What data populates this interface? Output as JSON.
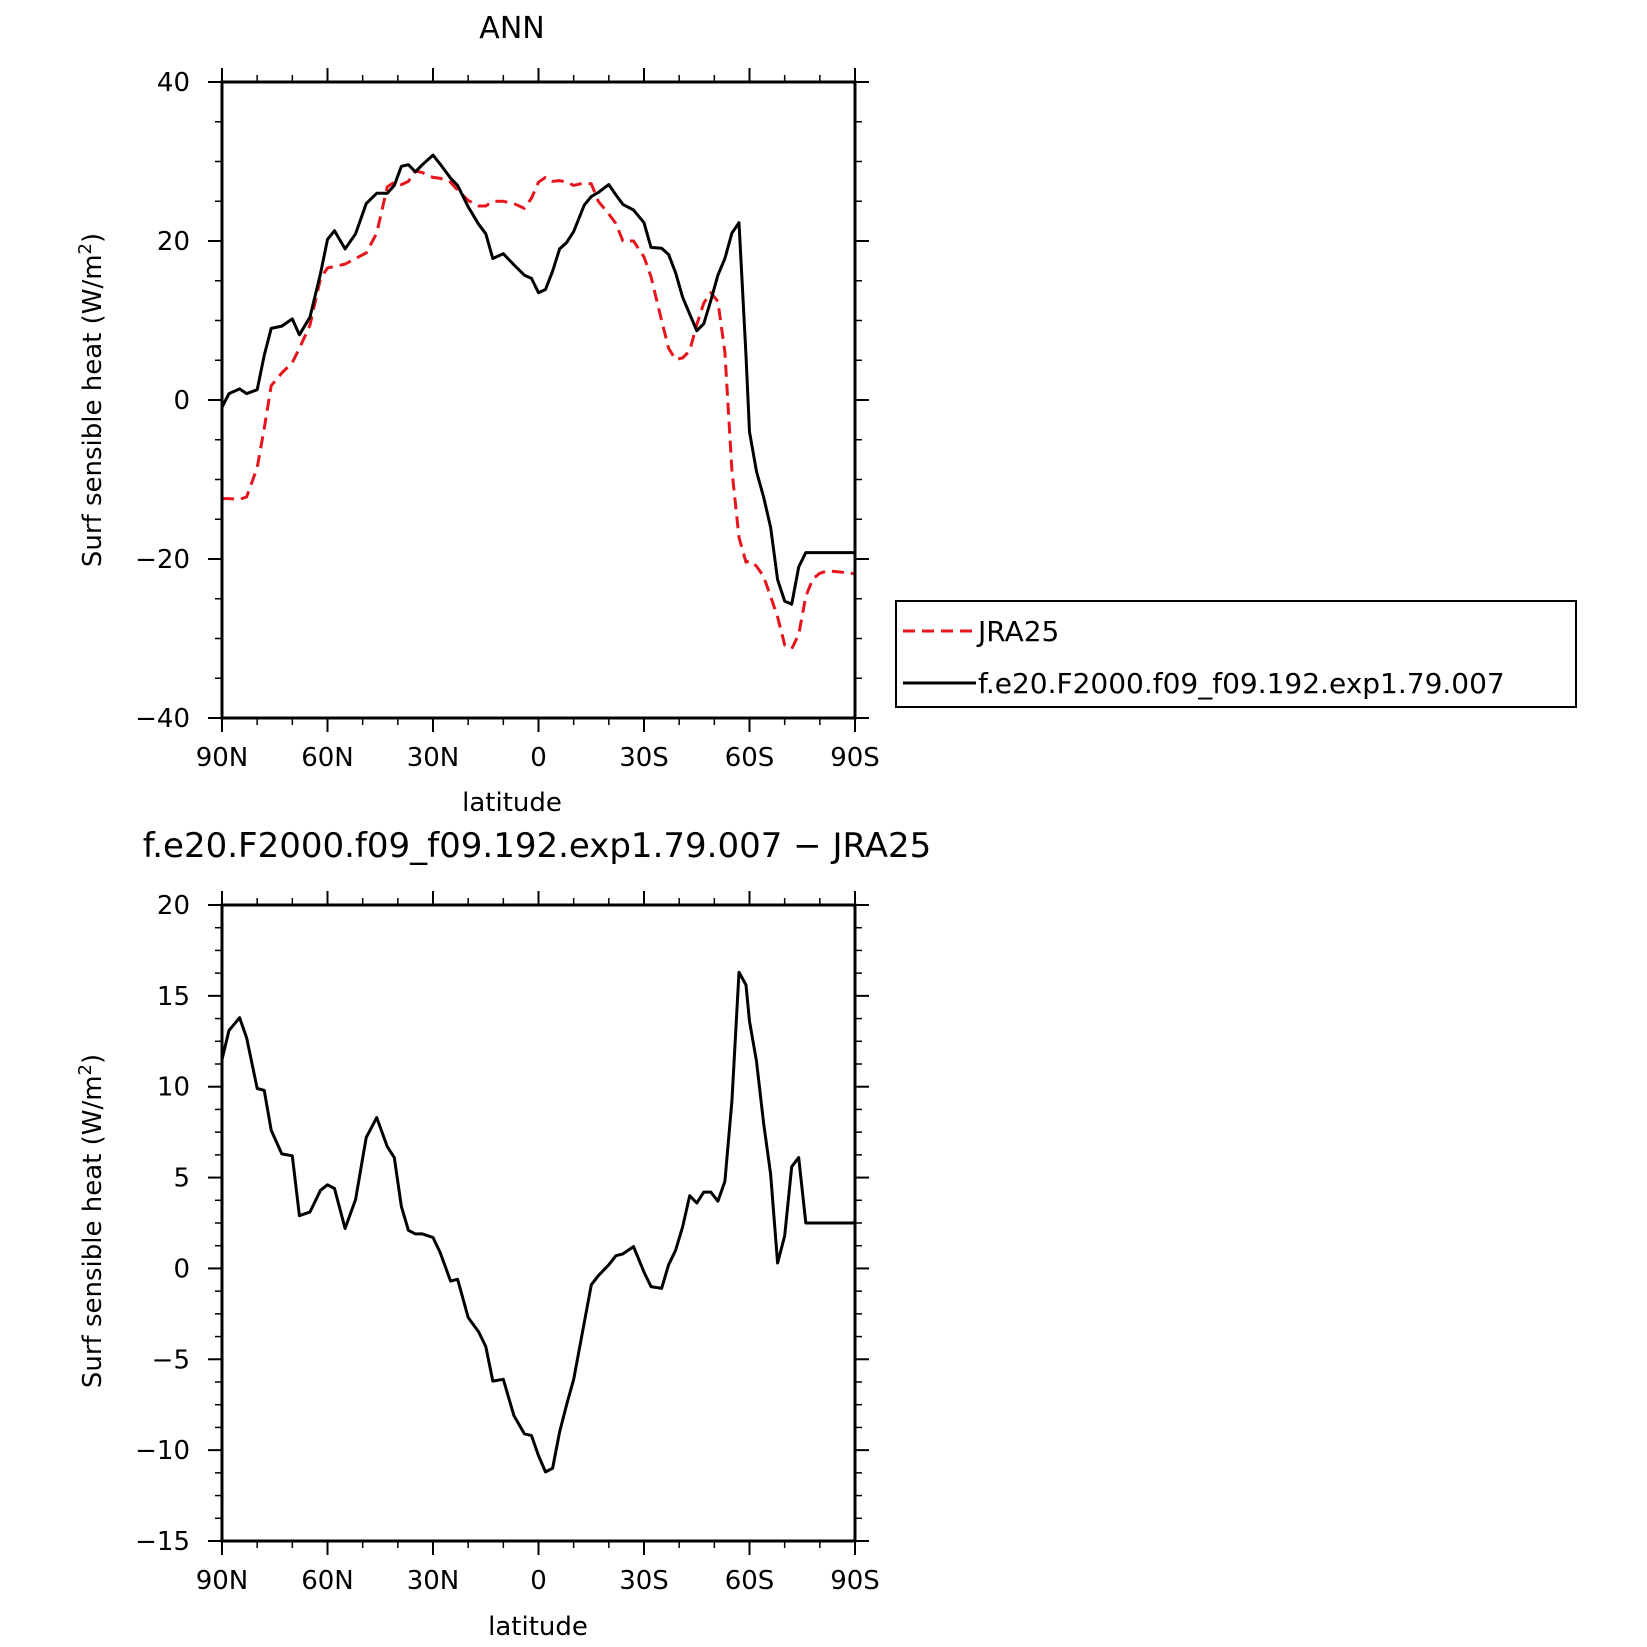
{
  "chart_data": [
    {
      "type": "line",
      "title": "ANN",
      "xlabel": "latitude",
      "ylabel": "Surf sensible heat (W/m²)",
      "xlim": [
        90,
        -90
      ],
      "ylim": [
        -40,
        40
      ],
      "xticks": [
        90,
        60,
        30,
        0,
        -30,
        -60,
        -90
      ],
      "xtick_labels": [
        "90N",
        "60N",
        "30N",
        "0",
        "30S",
        "60S",
        "90S"
      ],
      "yticks": [
        -40,
        -20,
        0,
        20,
        40
      ],
      "ytick_labels": [
        "−40",
        "−20",
        "0",
        "20",
        "40"
      ],
      "legend_position": "right",
      "series": [
        {
          "name": "JRA25",
          "color": "#e8141c",
          "dash": "dashed",
          "x": [
            90,
            88,
            85,
            83,
            80,
            78,
            76,
            73,
            70,
            68,
            65,
            62,
            60,
            58,
            55,
            52,
            49,
            46,
            43,
            41,
            39,
            37,
            35,
            33,
            30,
            28,
            25,
            23,
            20,
            17,
            15,
            13,
            10,
            7,
            4,
            2,
            0,
            -2,
            -4,
            -6,
            -8,
            -10,
            -13,
            -15,
            -17,
            -20,
            -22,
            -24,
            -27,
            -30,
            -32,
            -35,
            -37,
            -39,
            -41,
            -43,
            -45,
            -47,
            -49,
            -51,
            -53,
            -55,
            -57,
            -59,
            -60,
            -62,
            -64,
            -66,
            -68,
            -70,
            -72,
            -74,
            -76,
            -78,
            -80,
            -82,
            -85,
            -87,
            -89,
            -90
          ],
          "y": [
            -12.4,
            -12.4,
            -12.5,
            -12.2,
            -8.5,
            -3.6,
            1.8,
            3.4,
            4.7,
            6.5,
            9.4,
            15.3,
            16.6,
            16.8,
            17.1,
            17.8,
            18.5,
            21,
            26.8,
            27.4,
            27.1,
            27.5,
            28.8,
            28.6,
            28,
            27.9,
            27.4,
            26.4,
            25.1,
            24.4,
            24.4,
            25,
            25,
            24.7,
            24.1,
            25.4,
            27.4,
            28,
            27.5,
            27.6,
            27.4,
            27,
            27.3,
            27.2,
            25,
            23.4,
            22.2,
            20,
            20,
            18,
            15.5,
            10,
            6.5,
            5.1,
            5.3,
            6.2,
            9.5,
            12.2,
            13.5,
            12.4,
            6,
            -8.8,
            -17.3,
            -20.4,
            -20.2,
            -20.9,
            -22.2,
            -24.7,
            -27.3,
            -30.8,
            -31.3,
            -29.5,
            -24.7,
            -22.5,
            -21.8,
            -21.5,
            -21.6,
            -21.7,
            -21.8,
            -21.9
          ]
        },
        {
          "name": "f.e20.F2000.f09_f09.192.exp1.79.007",
          "color": "#000000",
          "dash": "solid",
          "x": [
            90,
            88,
            85,
            83,
            80,
            78,
            76,
            73,
            70,
            68,
            65,
            62,
            60,
            58,
            55,
            52,
            49,
            46,
            43,
            41,
            39,
            37,
            35,
            33,
            30,
            28,
            25,
            23,
            20,
            17,
            15,
            13,
            10,
            7,
            4,
            2,
            0,
            -2,
            -4,
            -6,
            -8,
            -10,
            -13,
            -15,
            -17,
            -20,
            -22,
            -24,
            -27,
            -30,
            -32,
            -35,
            -37,
            -39,
            -41,
            -43,
            -45,
            -47,
            -49,
            -51,
            -53,
            -55,
            -57,
            -59,
            -60,
            -62,
            -64,
            -66,
            -68,
            -70,
            -72,
            -74,
            -76,
            -78,
            -80,
            -82,
            -85,
            -87,
            -89,
            -90
          ],
          "y": [
            -0.9,
            0.8,
            1.4,
            0.8,
            1.3,
            5.6,
            9,
            9.3,
            10.2,
            8.2,
            10.4,
            15.9,
            20.2,
            21.3,
            19,
            20.9,
            24.7,
            26,
            26,
            27,
            29.4,
            29.6,
            28.7,
            29.6,
            30.8,
            29.7,
            27.9,
            27,
            24.3,
            22.1,
            20.9,
            17.8,
            18.4,
            17,
            15.7,
            15.3,
            13.5,
            13.9,
            16.2,
            19,
            19.8,
            21.2,
            24.5,
            25.6,
            26.1,
            27.1,
            25.8,
            24.6,
            23.9,
            22.3,
            19.2,
            19.1,
            18.3,
            16,
            12.9,
            10.8,
            8.7,
            9.6,
            12.5,
            15.7,
            17.8,
            21,
            22.3,
            5.6,
            -4,
            -9,
            -12.2,
            -16,
            -22.6,
            -25.3,
            -25.7,
            -21,
            -19.2,
            -19.2,
            -19.2,
            -19.2,
            -19.2,
            -19.2,
            -19.2,
            -19.2
          ]
        }
      ]
    },
    {
      "type": "line",
      "title": "f.e20.F2000.f09_f09.192.exp1.79.007 − JRA25",
      "xlabel": "latitude",
      "ylabel": "Surf sensible heat (W/m²)",
      "xlim": [
        90,
        -90
      ],
      "ylim": [
        -15,
        20
      ],
      "xticks": [
        90,
        60,
        30,
        0,
        -30,
        -60,
        -90
      ],
      "xtick_labels": [
        "90N",
        "60N",
        "30N",
        "0",
        "30S",
        "60S",
        "90S"
      ],
      "yticks": [
        -15,
        -10,
        -5,
        0,
        5,
        10,
        15,
        20
      ],
      "ytick_labels": [
        "−15",
        "−10",
        "−5",
        "0",
        "5",
        "10",
        "15",
        "20"
      ],
      "series": [
        {
          "color": "#000000",
          "dash": "solid",
          "x": [
            90,
            88,
            85,
            83,
            80,
            78,
            76,
            73,
            70,
            68,
            65,
            62,
            60,
            58,
            55,
            52,
            49,
            46,
            43,
            41,
            39,
            37,
            35,
            33,
            30,
            28,
            25,
            23,
            20,
            17,
            15,
            13,
            10,
            7,
            4,
            2,
            0,
            -2,
            -4,
            -6,
            -8,
            -10,
            -13,
            -15,
            -17,
            -20,
            -22,
            -24,
            -27,
            -30,
            -32,
            -35,
            -37,
            -39,
            -41,
            -43,
            -45,
            -47,
            -49,
            -51,
            -53,
            -55,
            -57,
            -59,
            -60,
            -62,
            -64,
            -66,
            -68,
            -70,
            -72,
            -74,
            -76,
            -78,
            -80,
            -82,
            -85,
            -87,
            -89,
            -90
          ],
          "y": [
            11.5,
            13.1,
            13.8,
            12.7,
            9.9,
            9.8,
            7.6,
            6.3,
            6.2,
            2.9,
            3.1,
            4.3,
            4.6,
            4.4,
            2.2,
            3.8,
            7.2,
            8.3,
            6.7,
            6.1,
            3.4,
            2.1,
            1.9,
            1.9,
            1.7,
            0.9,
            -0.7,
            -0.6,
            -2.7,
            -3.5,
            -4.3,
            -6.2,
            -6.1,
            -8.1,
            -9.1,
            -9.2,
            -10.3,
            -11.2,
            -11,
            -9,
            -7.5,
            -6.1,
            -3,
            -0.9,
            -0.4,
            0.2,
            0.7,
            0.8,
            1.2,
            -0.2,
            -1,
            -1.1,
            0.2,
            1,
            2.3,
            4,
            3.6,
            4.2,
            4.2,
            3.7,
            4.8,
            9.2,
            16.3,
            15.6,
            13.6,
            11.4,
            8,
            5.2,
            0.3,
            1.8,
            5.6,
            6.1,
            2.5,
            2.5,
            2.5,
            2.5,
            2.5,
            2.5,
            2.5,
            2.5
          ]
        }
      ]
    }
  ]
}
